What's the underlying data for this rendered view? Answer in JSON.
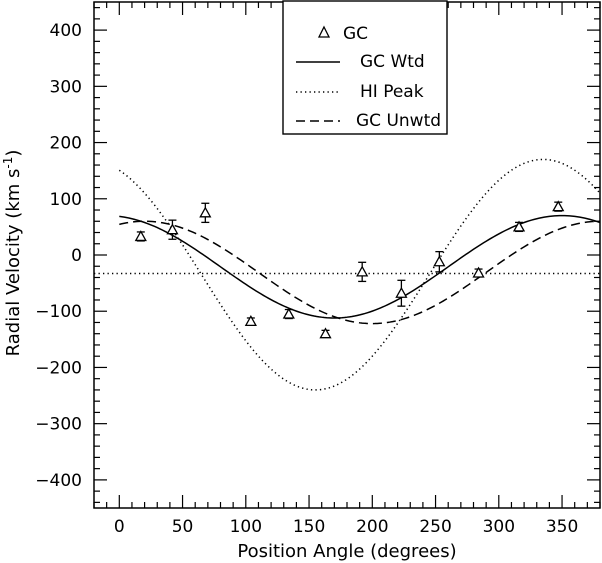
{
  "chart_data": {
    "type": "scatter",
    "title": "",
    "xlabel": "Position Angle (degrees)",
    "ylabel_main": "Radial Velocity (km s",
    "ylabel_sup": "-1",
    "ylabel_close": ")",
    "xlim": [
      -20,
      380
    ],
    "ylim": [
      -450,
      450
    ],
    "xticks_major": [
      0,
      50,
      100,
      150,
      200,
      250,
      300,
      350
    ],
    "xticks_minor_step": 10,
    "yticks_major": [
      -400,
      -300,
      -200,
      -100,
      0,
      100,
      200,
      300,
      400
    ],
    "yticks_minor_step": 20,
    "grid": false,
    "legend_position": "top-center",
    "legend": [
      "GC",
      "GC Wtd",
      "HI Peak",
      "GC Unwtd"
    ],
    "series": [
      {
        "name": "GC",
        "kind": "points-with-error-bars",
        "marker": "triangle",
        "points": [
          {
            "x": 17,
            "y": 33,
            "err": 8
          },
          {
            "x": 42,
            "y": 45,
            "err": 17
          },
          {
            "x": 68,
            "y": 75,
            "err": 17
          },
          {
            "x": 104,
            "y": -118,
            "err": 6
          },
          {
            "x": 134,
            "y": -105,
            "err": 8
          },
          {
            "x": 163,
            "y": -140,
            "err": 6
          },
          {
            "x": 192,
            "y": -30,
            "err": 17
          },
          {
            "x": 223,
            "y": -68,
            "err": 23
          },
          {
            "x": 253,
            "y": -12,
            "err": 18
          },
          {
            "x": 284,
            "y": -32,
            "err": 7
          },
          {
            "x": 316,
            "y": 50,
            "err": 8
          },
          {
            "x": 347,
            "y": 86,
            "err": 8
          }
        ]
      },
      {
        "name": "GC Wtd",
        "kind": "sinusoid",
        "style": "solid",
        "v0": -21,
        "amp": 91,
        "peak_angle": 350
      },
      {
        "name": "HI Peak",
        "kind": "sinusoid",
        "style": "dotted",
        "v0": -35,
        "amp": 205,
        "peak_angle": 335
      },
      {
        "name": "GC Unwtd",
        "kind": "sinusoid",
        "style": "dashed",
        "v0": -31,
        "amp": 91,
        "peak_angle": 20
      },
      {
        "name": "HI systemic",
        "kind": "hline",
        "style": "dotted",
        "y": -33
      }
    ]
  }
}
